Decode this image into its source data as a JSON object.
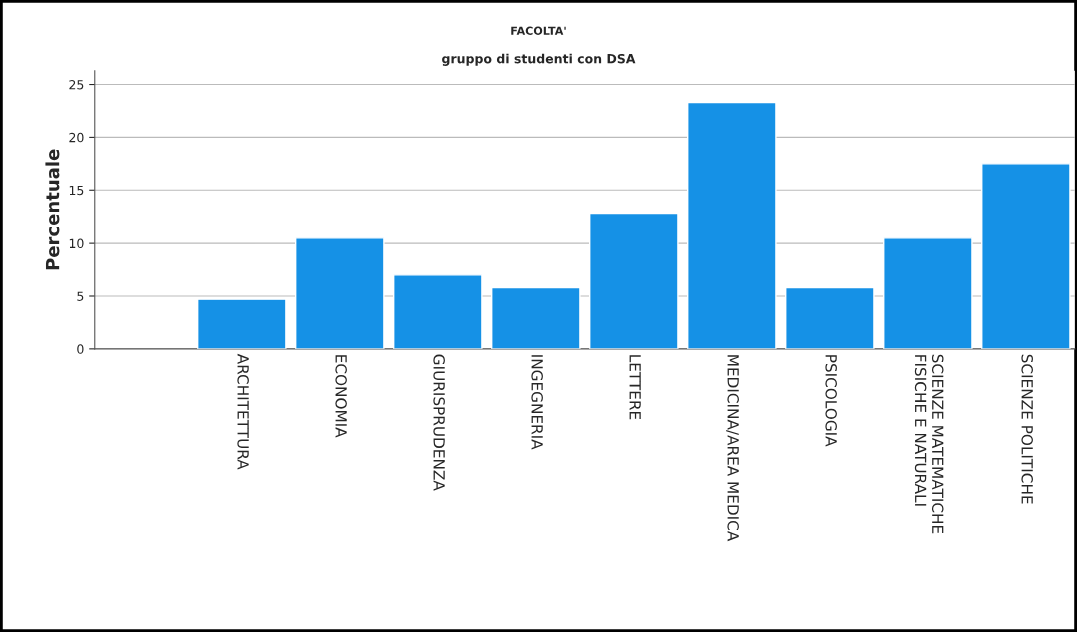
{
  "chart_data": {
    "type": "bar",
    "title": "FACOLTA'",
    "subtitle": "gruppo di studenti con DSA",
    "ylabel": "Percentuale",
    "categories": [
      "ARCHITETTURA",
      "ECONOMIA",
      "GIURISPRUDENZA",
      "INGEGNERIA",
      "LETTERE",
      "MEDICINA/AREA MEDICA",
      "PSICOLOGIA",
      "SCIENZE MATEMATICHE\nFISICHE E NATURALI",
      "SCIENZE POLITICHE"
    ],
    "values": [
      4.7,
      10.5,
      7.0,
      5.8,
      12.8,
      23.3,
      5.8,
      10.5,
      17.5
    ],
    "color": "#1591e6",
    "ylim": [
      0,
      26.3
    ],
    "yticks": [
      0,
      5,
      10,
      15,
      20,
      25
    ],
    "grid": "y"
  }
}
